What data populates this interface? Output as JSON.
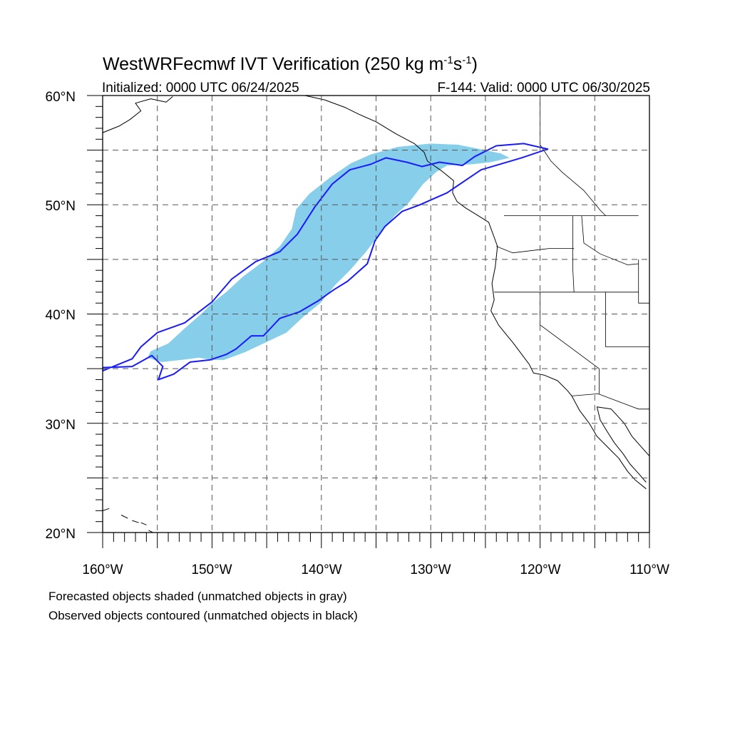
{
  "title": {
    "main": "WestWRFecmwf IVT Verification (250 kg m",
    "sup1": "-1",
    "mid": "s",
    "sup2": "-1",
    "close": ")"
  },
  "subtitle_left": "Initialized: 0000 UTC 06/24/2025",
  "subtitle_right": "F-144: Valid: 0000 UTC 06/30/2025",
  "lat_labels": [
    "60°N",
    "50°N",
    "40°N",
    "30°N",
    "20°N"
  ],
  "lon_labels": [
    "160°W",
    "150°W",
    "140°W",
    "130°W",
    "120°W",
    "110°W"
  ],
  "footer": [
    "Forecasted objects shaded (unmatched objects in gray)",
    "Observed objects contoured (unmatched objects in black)"
  ],
  "colors": {
    "forecast_fill": "#87ceeb",
    "observed_contour": "#1a1aff",
    "grid": "#555555",
    "coast": "#000000"
  },
  "map": {
    "lon_range": [
      -160,
      -110
    ],
    "lat_range": [
      20,
      60
    ],
    "grid_lon_step": 5,
    "grid_lat_step": 5,
    "forecast_object": [
      [
        -155.9,
        36.0
      ],
      [
        -155.6,
        36.6
      ],
      [
        -154.0,
        37.3
      ],
      [
        -152.6,
        38.6
      ],
      [
        -151.0,
        40.0
      ],
      [
        -150.0,
        41.0
      ],
      [
        -148.7,
        42.0
      ],
      [
        -147.2,
        43.4
      ],
      [
        -145.2,
        44.9
      ],
      [
        -143.8,
        46.2
      ],
      [
        -142.7,
        47.8
      ],
      [
        -142.3,
        49.6
      ],
      [
        -141.1,
        51.0
      ],
      [
        -139.2,
        52.5
      ],
      [
        -137.3,
        53.8
      ],
      [
        -135.5,
        54.6
      ],
      [
        -133.0,
        55.3
      ],
      [
        -130.0,
        55.6
      ],
      [
        -127.5,
        55.5
      ],
      [
        -125.5,
        55.1
      ],
      [
        -123.6,
        54.7
      ],
      [
        -122.8,
        54.3
      ],
      [
        -124.5,
        53.9
      ],
      [
        -126.3,
        53.7
      ],
      [
        -128.5,
        53.6
      ],
      [
        -129.5,
        53.0
      ],
      [
        -130.7,
        51.9
      ],
      [
        -132.0,
        50.2
      ],
      [
        -133.3,
        49.0
      ],
      [
        -134.7,
        47.3
      ],
      [
        -136.0,
        45.6
      ],
      [
        -137.4,
        44.0
      ],
      [
        -138.8,
        42.6
      ],
      [
        -140.1,
        41.0
      ],
      [
        -141.6,
        39.8
      ],
      [
        -143.2,
        38.3
      ],
      [
        -145.3,
        37.3
      ],
      [
        -147.0,
        36.5
      ],
      [
        -148.9,
        35.8
      ],
      [
        -150.0,
        35.8
      ],
      [
        -151.2,
        36.0
      ],
      [
        -152.8,
        35.8
      ],
      [
        -154.6,
        35.6
      ]
    ],
    "observed_object": [
      [
        -160.0,
        34.8
      ],
      [
        -157.3,
        35.9
      ],
      [
        -156.5,
        37.0
      ],
      [
        -155.0,
        38.3
      ],
      [
        -152.5,
        39.2
      ],
      [
        -150.0,
        41.1
      ],
      [
        -148.2,
        43.2
      ],
      [
        -146.0,
        44.8
      ],
      [
        -143.8,
        45.7
      ],
      [
        -142.2,
        47.3
      ],
      [
        -140.6,
        49.8
      ],
      [
        -139.0,
        51.9
      ],
      [
        -137.4,
        53.2
      ],
      [
        -135.5,
        53.7
      ],
      [
        -134.1,
        54.3
      ],
      [
        -132.2,
        53.9
      ],
      [
        -130.8,
        53.5
      ],
      [
        -129.2,
        53.9
      ],
      [
        -127.1,
        53.6
      ],
      [
        -126.0,
        54.4
      ],
      [
        -124.0,
        55.4
      ],
      [
        -121.5,
        55.6
      ],
      [
        -119.3,
        55.1
      ],
      [
        -121.7,
        54.3
      ],
      [
        -125.4,
        53.2
      ],
      [
        -128.5,
        51.1
      ],
      [
        -131.0,
        50.0
      ],
      [
        -132.6,
        49.4
      ],
      [
        -134.2,
        48.0
      ],
      [
        -135.1,
        46.7
      ],
      [
        -135.8,
        44.6
      ],
      [
        -137.6,
        43.0
      ],
      [
        -138.9,
        42.2
      ],
      [
        -140.3,
        41.2
      ],
      [
        -142.0,
        40.2
      ],
      [
        -143.8,
        39.6
      ],
      [
        -145.3,
        38.0
      ],
      [
        -146.4,
        38.0
      ],
      [
        -147.8,
        36.8
      ],
      [
        -148.7,
        36.3
      ],
      [
        -150.2,
        35.8
      ],
      [
        -152.0,
        35.6
      ],
      [
        -153.5,
        34.5
      ],
      [
        -154.9,
        34.0
      ],
      [
        -154.5,
        35.2
      ],
      [
        -155.5,
        36.2
      ],
      [
        -157.3,
        35.2
      ],
      [
        -160.0,
        35.1
      ]
    ],
    "coastline": [
      [
        -124.5,
        40.3
      ],
      [
        -124.2,
        41.3
      ],
      [
        -124.4,
        42.8
      ],
      [
        -124.1,
        44.3
      ],
      [
        -123.9,
        46.2
      ],
      [
        -124.7,
        48.4
      ],
      [
        -125.5,
        48.9
      ],
      [
        -126.8,
        49.7
      ],
      [
        -127.6,
        50.3
      ],
      [
        -128.0,
        51.1
      ],
      [
        -127.9,
        52.2
      ],
      [
        -129.0,
        53.1
      ],
      [
        -130.3,
        54.0
      ],
      [
        -130.6,
        54.8
      ],
      [
        -131.5,
        55.6
      ],
      [
        -133.2,
        56.5
      ],
      [
        -135.0,
        57.6
      ],
      [
        -136.6,
        58.3
      ],
      [
        -137.8,
        58.9
      ],
      [
        -139.7,
        59.6
      ],
      [
        -141.5,
        60.0
      ]
    ],
    "coastline_south": [
      [
        -124.5,
        40.3
      ],
      [
        -123.8,
        39.0
      ],
      [
        -123.0,
        38.0
      ],
      [
        -122.5,
        37.4
      ],
      [
        -121.9,
        36.6
      ],
      [
        -121.0,
        35.4
      ],
      [
        -120.6,
        34.6
      ],
      [
        -119.6,
        34.4
      ],
      [
        -118.4,
        33.9
      ],
      [
        -117.5,
        33.0
      ],
      [
        -117.1,
        32.5
      ],
      [
        -116.4,
        31.2
      ],
      [
        -115.5,
        30.0
      ],
      [
        -114.8,
        28.8
      ],
      [
        -114.0,
        28.0
      ],
      [
        -113.5,
        27.5
      ],
      [
        -112.8,
        26.8
      ],
      [
        -112.0,
        25.6
      ],
      [
        -111.3,
        24.8
      ],
      [
        -110.3,
        24.0
      ]
    ],
    "baja_east": [
      [
        -114.8,
        31.5
      ],
      [
        -114.5,
        30.3
      ],
      [
        -113.9,
        29.3
      ],
      [
        -113.2,
        28.2
      ],
      [
        -112.4,
        27.2
      ],
      [
        -111.8,
        26.3
      ],
      [
        -111.0,
        25.4
      ],
      [
        -110.3,
        24.6
      ]
    ],
    "mainland_mexico": [
      [
        -114.8,
        31.5
      ],
      [
        -113.5,
        31.3
      ],
      [
        -112.3,
        30.0
      ],
      [
        -111.6,
        28.8
      ],
      [
        -110.8,
        27.9
      ],
      [
        -110.0,
        27.0
      ]
    ],
    "borders": [
      [
        [
          -124.2,
          42.0
        ],
        [
          -120.0,
          42.0
        ],
        [
          -117.0,
          42.0
        ],
        [
          -111.0,
          42.0
        ]
      ],
      [
        [
          -120.0,
          42.0
        ],
        [
          -120.0,
          39.0
        ],
        [
          -114.6,
          35.0
        ],
        [
          -114.6,
          32.7
        ]
      ],
      [
        [
          -123.3,
          49.0
        ],
        [
          -117.0,
          49.0
        ],
        [
          -111.0,
          49.0
        ]
      ],
      [
        [
          -124.0,
          46.2
        ],
        [
          -122.5,
          45.6
        ],
        [
          -119.2,
          46.0
        ],
        [
          -116.9,
          46.0
        ]
      ],
      [
        [
          -117.0,
          49.0
        ],
        [
          -117.0,
          44.0
        ],
        [
          -116.9,
          42.0
        ]
      ],
      [
        [
          -116.2,
          49.0
        ],
        [
          -116.0,
          46.5
        ],
        [
          -114.5,
          45.5
        ],
        [
          -112.0,
          44.5
        ],
        [
          -111.0,
          44.6
        ]
      ],
      [
        [
          -114.0,
          42.0
        ],
        [
          -114.0,
          37.0
        ],
        [
          -110.0,
          37.0
        ]
      ],
      [
        [
          -117.1,
          32.5
        ],
        [
          -114.7,
          32.7
        ],
        [
          -111.0,
          31.3
        ],
        [
          -110.0,
          31.3
        ]
      ],
      [
        [
          -111.0,
          45.0
        ],
        [
          -111.0,
          41.0
        ],
        [
          -110.0,
          41.0
        ]
      ],
      [
        [
          -120.0,
          60.0
        ],
        [
          -120.0,
          55.5
        ],
        [
          -119.0,
          54.0
        ],
        [
          -118.0,
          53.0
        ],
        [
          -116.0,
          51.3
        ],
        [
          -114.5,
          49.5
        ],
        [
          -114.0,
          49.0
        ]
      ]
    ],
    "alaska_coast": [
      [
        -160.0,
        56.6
      ],
      [
        -158.5,
        57.2
      ],
      [
        -157.5,
        57.8
      ],
      [
        -156.5,
        58.6
      ],
      [
        -157.0,
        59.3
      ],
      [
        -155.6,
        59.7
      ],
      [
        -154.2,
        59.4
      ],
      [
        -153.6,
        59.9
      ]
    ],
    "hawaii": [
      [
        [
          -160.0,
          22.0
        ],
        [
          -159.4,
          22.2
        ]
      ],
      [
        [
          -158.3,
          21.6
        ],
        [
          -157.7,
          21.3
        ]
      ],
      [
        [
          -157.3,
          21.1
        ],
        [
          -156.7,
          20.9
        ]
      ],
      [
        [
          -156.5,
          20.9
        ],
        [
          -156.0,
          20.7
        ]
      ],
      [
        [
          -155.8,
          20.2
        ],
        [
          -155.0,
          19.8
        ]
      ]
    ]
  }
}
